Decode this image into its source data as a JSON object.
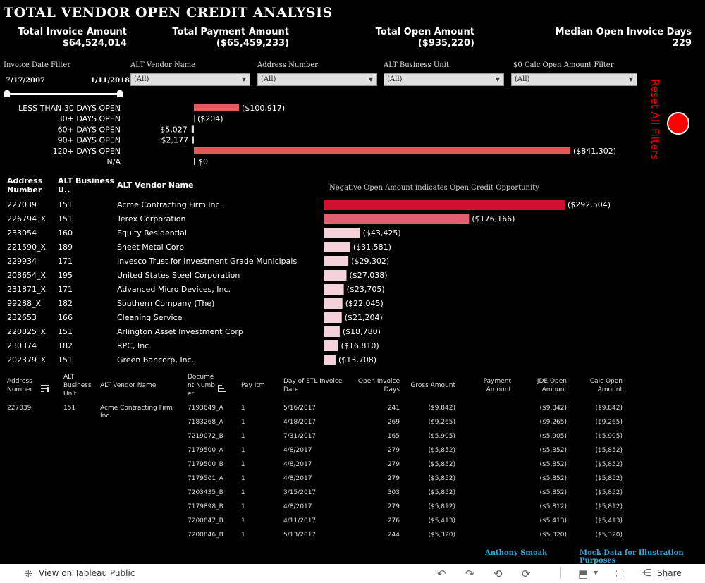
{
  "title": "TOTAL VENDOR OPEN CREDIT ANALYSIS",
  "kpis": [
    {
      "label": "Total Invoice Amount",
      "value": "$64,524,014"
    },
    {
      "label": "Total Payment Amount",
      "value": "($65,459,233)"
    },
    {
      "label": "Total Open Amount",
      "value": "($935,220)"
    },
    {
      "label": "Median Open Invoice Days",
      "value": "229"
    }
  ],
  "filters": {
    "date_label": "Invoice Date Filter",
    "date_start": "7/17/2007",
    "date_end": "1/11/2018",
    "dropdowns": [
      {
        "label": "ALT Vendor Name",
        "value": "(All)"
      },
      {
        "label": "Address Number",
        "value": "(All)"
      },
      {
        "label": "ALT Business Unit",
        "value": "(All)"
      },
      {
        "label": "$0 Calc Open Amount Filter",
        "value": "(All)"
      }
    ]
  },
  "reset_label": "Reset All Filters",
  "aging": [
    {
      "label": "LESS THAN 30 DAYS OPEN",
      "value": "($100,917)",
      "amount": -100917
    },
    {
      "label": "30+ DAYS OPEN",
      "value": "($204)",
      "amount": -204
    },
    {
      "label": "60+ DAYS OPEN",
      "value": "$5,027",
      "amount": 5027
    },
    {
      "label": "90+ DAYS OPEN",
      "value": "$2,177",
      "amount": 2177
    },
    {
      "label": "120+ DAYS OPEN",
      "value": "($841,302)",
      "amount": -841302
    },
    {
      "label": "N/A",
      "value": "$0",
      "amount": 0
    }
  ],
  "vendor_chart": {
    "headers": {
      "address": "Address Number",
      "bu": "ALT Business U..",
      "vendor": "ALT Vendor Name"
    },
    "note": "Negative Open Amount indicates Open Credit Opportunity",
    "rows": [
      {
        "address": "227039",
        "bu": "151",
        "vendor": "Acme Contracting Firm Inc.",
        "label": "($292,504)",
        "amount": -292504
      },
      {
        "address": "226794_X",
        "bu": "151",
        "vendor": "Terex Corporation",
        "label": "($176,166)",
        "amount": -176166
      },
      {
        "address": "233054",
        "bu": "160",
        "vendor": "Equity Residential",
        "label": "($43,425)",
        "amount": -43425
      },
      {
        "address": "221590_X",
        "bu": "189",
        "vendor": "Sheet Metal Corp",
        "label": "($31,581)",
        "amount": -31581
      },
      {
        "address": "229934",
        "bu": "171",
        "vendor": "Invesco Trust for Investment Grade Municipals",
        "label": "($29,302)",
        "amount": -29302
      },
      {
        "address": "208654_X",
        "bu": "195",
        "vendor": "United States Steel Corporation",
        "label": "($27,038)",
        "amount": -27038
      },
      {
        "address": "231871_X",
        "bu": "171",
        "vendor": "Advanced Micro Devices, Inc.",
        "label": "($23,705)",
        "amount": -23705
      },
      {
        "address": "99288_X",
        "bu": "182",
        "vendor": "Southern Company (The)",
        "label": "($22,045)",
        "amount": -22045
      },
      {
        "address": "232653",
        "bu": "166",
        "vendor": "Cleaning Service",
        "label": "($21,204)",
        "amount": -21204
      },
      {
        "address": "220825_X",
        "bu": "151",
        "vendor": "Arlington Asset Investment Corp",
        "label": "($18,780)",
        "amount": -18780
      },
      {
        "address": "230374",
        "bu": "182",
        "vendor": "RPC, Inc.",
        "label": "($16,810)",
        "amount": -16810
      },
      {
        "address": "202379_X",
        "bu": "151",
        "vendor": "Green Bancorp, Inc.",
        "label": "($13,708)",
        "amount": -13708
      }
    ]
  },
  "detail_table": {
    "headers": [
      "Address Number",
      "ALT Business Unit",
      "ALT Vendor Name",
      "Document Number",
      "Pay Itm",
      "Day of ETL Invoice Date",
      "Open Invoice Days",
      "Gross Amount",
      "Payment Amount",
      "JDE Open Amount",
      "Calc Open Amount"
    ],
    "group": {
      "address": "227039",
      "bu": "151",
      "vendor": "Acme Contracting Firm Inc."
    },
    "rows": [
      [
        "7193649_A",
        "1",
        "5/16/2017",
        "241",
        "($9,842)",
        "",
        "($9,842)",
        "($9,842)"
      ],
      [
        "7183268_A",
        "1",
        "4/18/2017",
        "269",
        "($9,265)",
        "",
        "($9,265)",
        "($9,265)"
      ],
      [
        "7219072_B",
        "1",
        "7/31/2017",
        "165",
        "($5,905)",
        "",
        "($5,905)",
        "($5,905)"
      ],
      [
        "7179500_A",
        "1",
        "4/8/2017",
        "279",
        "($5,852)",
        "",
        "($5,852)",
        "($5,852)"
      ],
      [
        "7179500_B",
        "1",
        "4/8/2017",
        "279",
        "($5,852)",
        "",
        "($5,852)",
        "($5,852)"
      ],
      [
        "7179501_A",
        "1",
        "4/8/2017",
        "279",
        "($5,852)",
        "",
        "($5,852)",
        "($5,852)"
      ],
      [
        "7203435_B",
        "1",
        "3/15/2017",
        "303",
        "($5,852)",
        "",
        "($5,852)",
        "($5,852)"
      ],
      [
        "7179898_B",
        "1",
        "4/8/2017",
        "279",
        "($5,812)",
        "",
        "($5,812)",
        "($5,812)"
      ],
      [
        "7200847_B",
        "1",
        "4/11/2017",
        "276",
        "($5,413)",
        "",
        "($5,413)",
        "($5,413)"
      ],
      [
        "7200846_B",
        "1",
        "5/13/2017",
        "244",
        "($5,320)",
        "",
        "($5,320)",
        "($5,320)"
      ]
    ]
  },
  "credits": {
    "author": "Anthony Smoak",
    "note": "Mock Data for Illustration Purposes"
  },
  "footer": {
    "view_label": "View on Tableau Public",
    "share_label": "Share"
  },
  "colors": {
    "aging_bar": "#e05a5a",
    "top_bar": "#d0102c",
    "second_bar": "#e0606f",
    "light_bar": "#f3d2d9",
    "reset": "#ff0000",
    "credit": "#3aa5dc"
  }
}
